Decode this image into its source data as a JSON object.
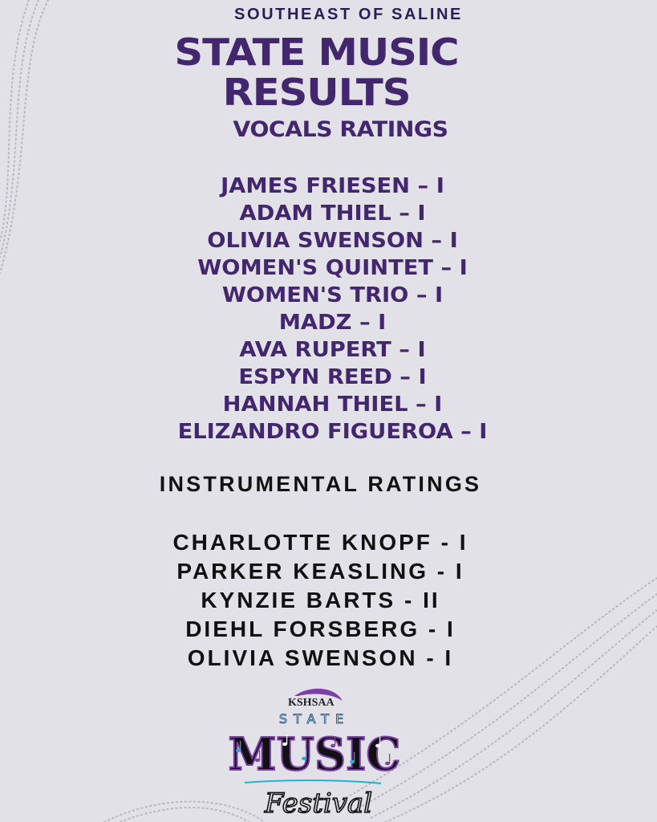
{
  "header": {
    "organization": "SOUTHEAST OF SALINE",
    "title_line1": "STATE MUSIC",
    "title_line2": "RESULTS"
  },
  "vocals": {
    "heading": "VOCALS RATINGS",
    "items": [
      "JAMES FRIESEN – I",
      "ADAM THIEL – I",
      "OLIVIA SWENSON – I",
      "WOMEN'S QUINTET – I",
      "WOMEN'S TRIO – I",
      "MADZ – I",
      "AVA RUPERT – I",
      "ESPYN REED – I",
      "HANNAH THIEL – I",
      "ELIZANDRO FIGUEROA – I"
    ]
  },
  "instrumental": {
    "heading": "INSTRUMENTAL RATINGS",
    "items": [
      "CHARLOTTE KNOPF - I",
      "PARKER KEASLING - I",
      "KYNZIE BARTS - II",
      "DIEHL FORSBERG - I",
      "OLIVIA SWENSON - I"
    ]
  },
  "logo": {
    "org": "KSHSAA",
    "line1": "STATE",
    "line2": "MUSIC",
    "line3": "Festival"
  },
  "colors": {
    "background": "#e3e1e8",
    "purple": "#42266e",
    "navy": "#2a1e55",
    "black": "#111111",
    "logo_cyan": "#1fb3d6",
    "logo_purple": "#7b3fa8"
  }
}
